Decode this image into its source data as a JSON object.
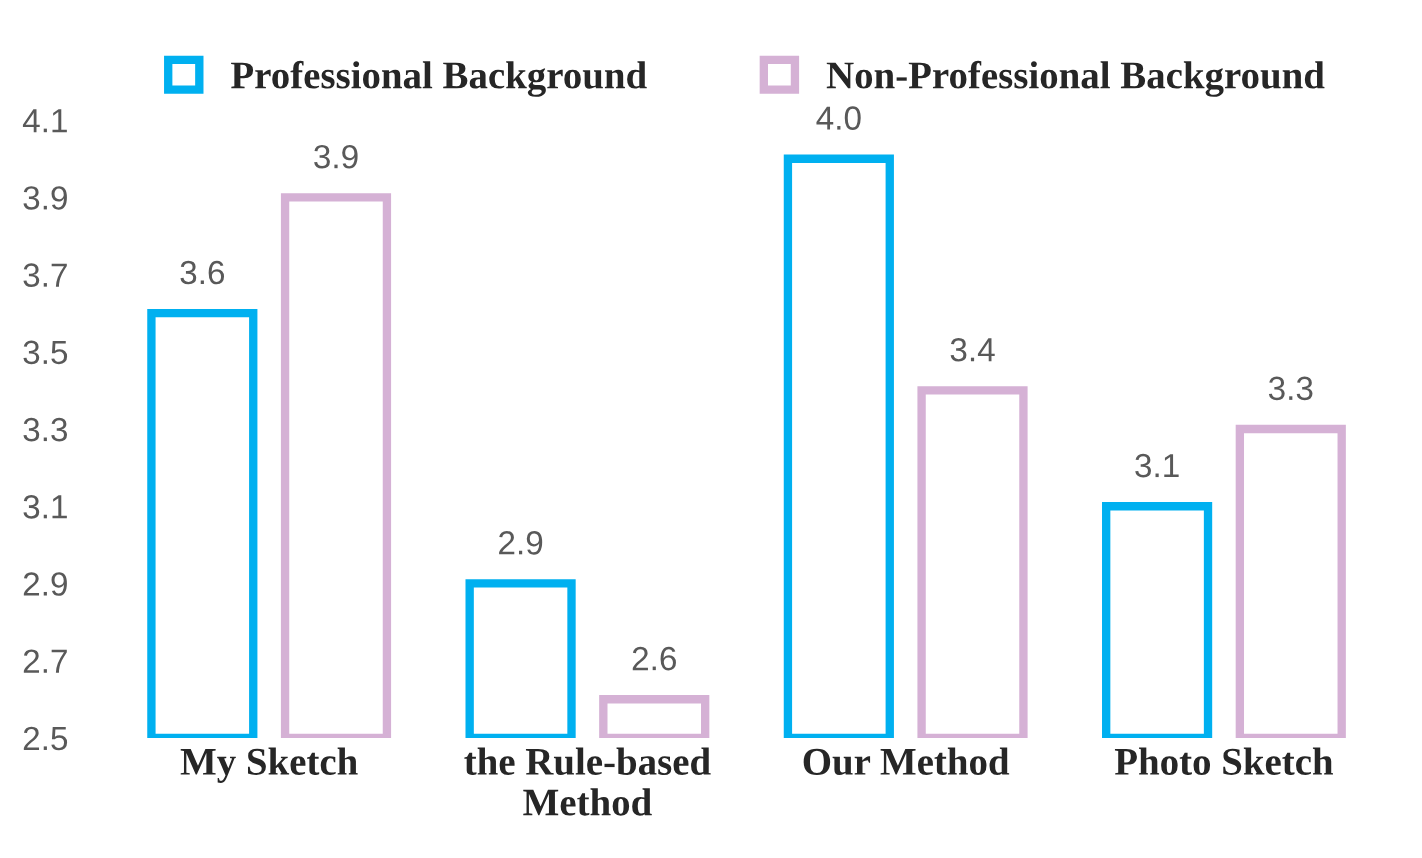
{
  "chart_data": {
    "type": "bar",
    "categories": [
      "My Sketch",
      "the Rule-based\nMethod",
      "Our Method",
      "Photo Sketch"
    ],
    "series": [
      {
        "name": "Professional Background",
        "color": "#00b0f0",
        "values": [
          3.6,
          2.9,
          4.0,
          3.1
        ],
        "value_labels": [
          "3.6",
          "2.9",
          "4.0",
          "3.1"
        ]
      },
      {
        "name": "Non-Professional Background",
        "color": "#d5b1d5",
        "values": [
          3.9,
          2.6,
          3.4,
          3.3
        ],
        "value_labels": [
          "3.9",
          "2.6",
          "3.4",
          "3.3"
        ]
      }
    ],
    "ylim": [
      2.5,
      4.1
    ],
    "yticks": [
      2.5,
      2.7,
      2.9,
      3.1,
      3.3,
      3.5,
      3.7,
      3.9,
      4.1
    ],
    "legend": "top",
    "grid": false
  }
}
